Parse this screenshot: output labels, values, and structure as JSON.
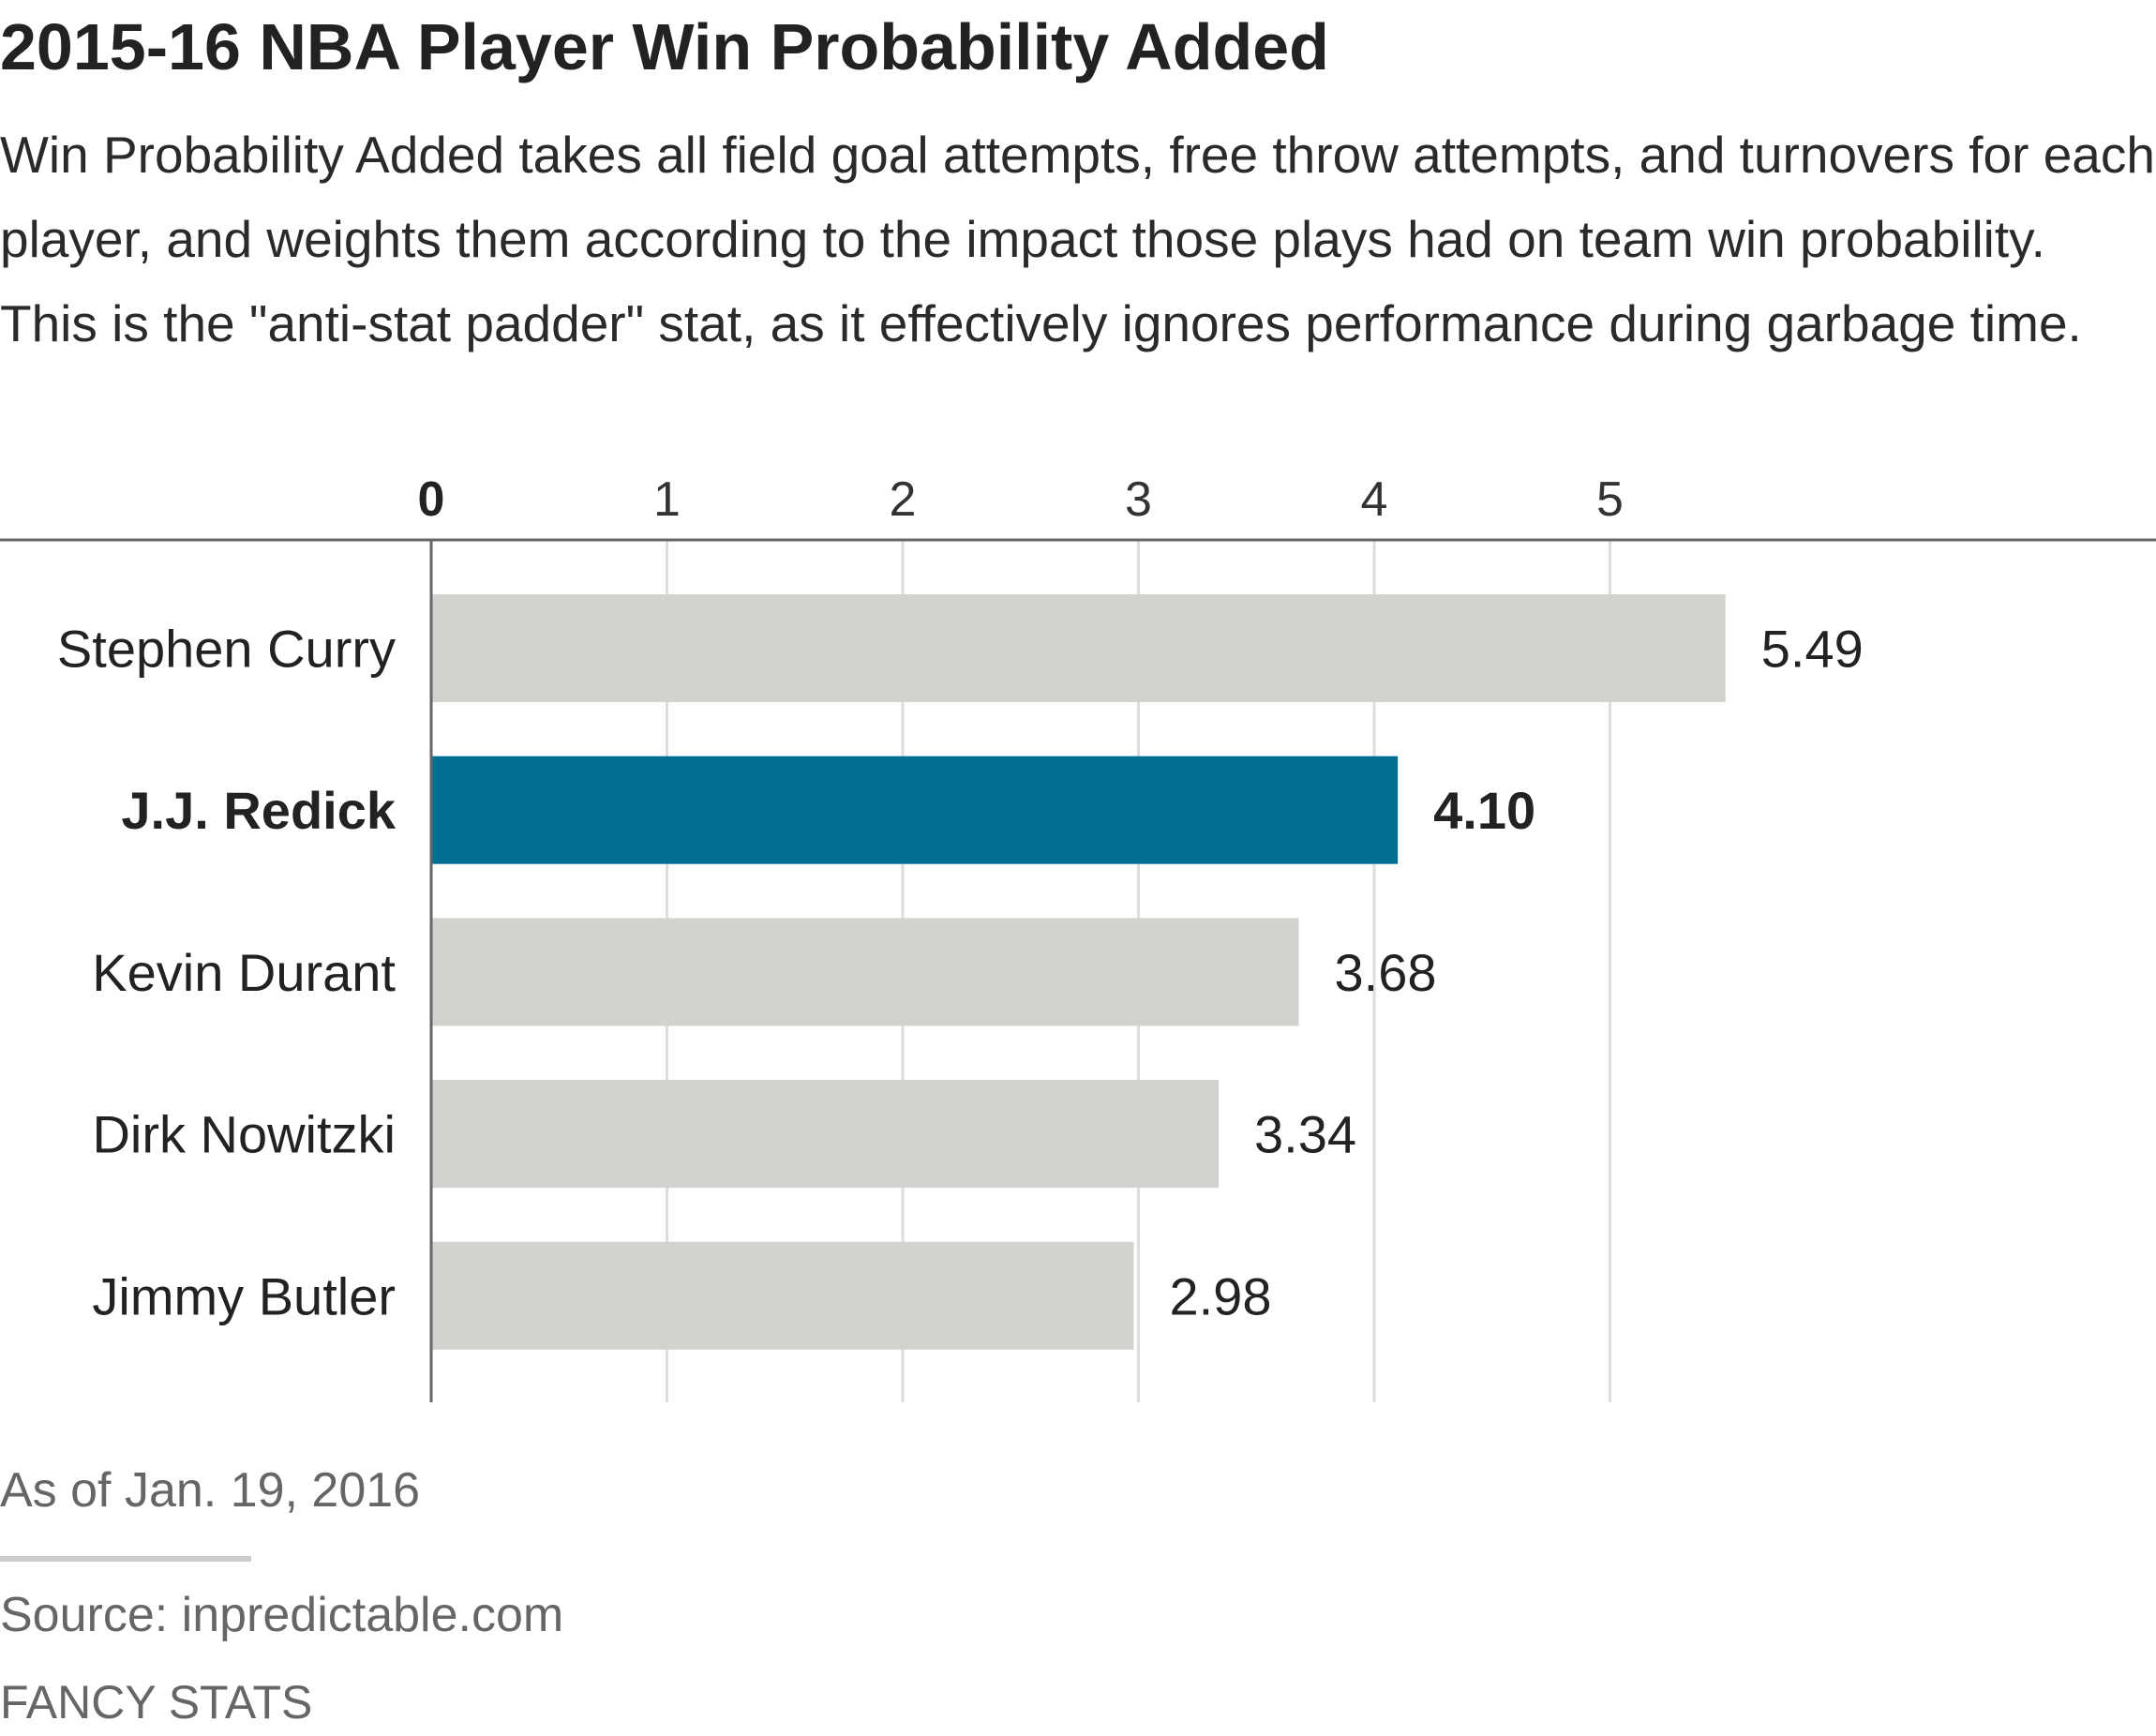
{
  "header": {
    "title": "2015-16 NBA Player Win Probability Added",
    "subtitle": "Win Probability Added takes all field goal attempts, free throw attempts, and turnovers for each player, and weights them according to the impact those plays had on team win probability. This is the \"anti-stat padder\" stat, as it effectively ignores performance during garbage time."
  },
  "footer": {
    "note": "As of Jan. 19, 2016",
    "source": "Source: inpredictable.com",
    "series_name": "FANCY STATS"
  },
  "chart_data": {
    "type": "bar",
    "orientation": "horizontal",
    "categories": [
      "Stephen Curry",
      "J.J. Redick",
      "Kevin Durant",
      "Dirk Nowitzki",
      "Jimmy Butler"
    ],
    "values": [
      5.49,
      4.1,
      3.68,
      3.34,
      2.98
    ],
    "value_labels": [
      "5.49",
      "4.10",
      "3.68",
      "3.34",
      "2.98"
    ],
    "highlight": "J.J. Redick",
    "xlim": [
      0,
      5.5
    ],
    "xticks": [
      0,
      1,
      2,
      3,
      4,
      5
    ],
    "xtick_labels": [
      "0",
      "1",
      "2",
      "3",
      "4",
      "5"
    ],
    "xticks_position": "top",
    "grid": true,
    "legend": false,
    "colors": {
      "bar": "#d2d2ce",
      "highlight": "#006f93",
      "grid": "#dddddd",
      "axis": "#666666"
    }
  }
}
